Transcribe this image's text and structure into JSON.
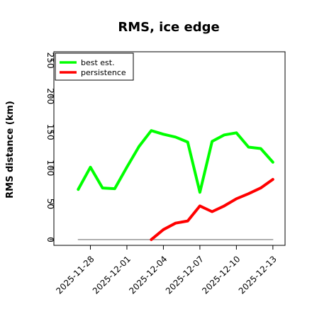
{
  "chart_data": {
    "type": "line",
    "title": "RMS, ice edge",
    "xlabel": "",
    "ylabel": "RMS distance (km)",
    "ylim": [
      -8,
      262
    ],
    "yticks": [
      0,
      50,
      100,
      150,
      200,
      250
    ],
    "xlim": [
      "2025-11-25",
      "2025-12-14"
    ],
    "xticks": [
      "2025-11-28",
      "2025-12-01",
      "2025-12-04",
      "2025-12-07",
      "2025-12-10",
      "2025-12-13"
    ],
    "legend_position": "top-left",
    "grid": false,
    "series": [
      {
        "name": "best est.",
        "color": "#00ff00",
        "x": [
          "2025-11-27",
          "2025-11-28",
          "2025-11-29",
          "2025-11-30",
          "2025-12-01",
          "2025-12-02",
          "2025-12-03",
          "2025-12-04",
          "2025-12-05",
          "2025-12-06",
          "2025-12-07",
          "2025-12-08",
          "2025-12-09",
          "2025-12-10",
          "2025-12-11",
          "2025-12-12",
          "2025-12-13"
        ],
        "values": [
          70,
          101,
          72,
          71,
          101,
          130,
          152,
          147,
          143,
          136,
          66,
          137,
          146,
          149,
          129,
          127,
          108
        ]
      },
      {
        "name": "persistence",
        "color": "#ff0000",
        "x": [
          "2025-12-03",
          "2025-12-04",
          "2025-12-05",
          "2025-12-06",
          "2025-12-07",
          "2025-12-08",
          "2025-12-09",
          "2025-12-10",
          "2025-12-11",
          "2025-12-12",
          "2025-12-13"
        ],
        "values": [
          0,
          14,
          23,
          26,
          47,
          39,
          47,
          57,
          64,
          72,
          84
        ]
      },
      {
        "name": "",
        "color": "#808080",
        "x": [
          "2025-11-27",
          "2025-12-13"
        ],
        "values": [
          0,
          0
        ]
      }
    ]
  }
}
